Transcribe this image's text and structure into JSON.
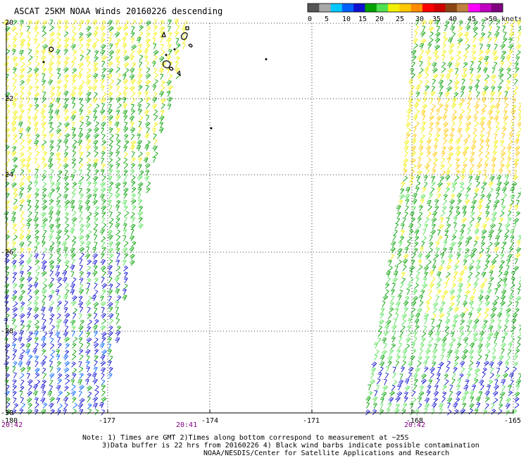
{
  "title": "ASCAT 25KM NOAA Winds 20160226 descending",
  "legend": {
    "labels": [
      "0",
      "5",
      "10",
      "15",
      "20",
      "25",
      "30",
      "35",
      "40",
      "45",
      ">50 knots"
    ],
    "colors": [
      "#555555",
      "#a8a8a8",
      "#00c8ff",
      "#0060ff",
      "#1010d0",
      "#00a000",
      "#50e050",
      "#f0f000",
      "#ffc800",
      "#ff8c00",
      "#ff0000",
      "#d00000",
      "#8b4513",
      "#c08040",
      "#ff00ff",
      "#c000c0",
      "#800080"
    ]
  },
  "map": {
    "lat_labels": [
      "-20",
      "-22",
      "-24",
      "-26",
      "-28",
      "-30"
    ],
    "lon_labels": [
      "-180",
      "-177",
      "-174",
      "-171",
      "-168",
      "-165"
    ],
    "times": [
      "20:42",
      "20:41",
      "20:42"
    ],
    "features": [
      "wind-barbs-west-swath",
      "wind-barbs-east-swath",
      "island-outlines"
    ]
  },
  "notes": [
    "Note: 1) Times are GMT 2)Times along bottom correspond to measurement at ~25S",
    "3)Data buffer is 22 hrs from 20160226 4) Black wind barbs indicate possible contamination",
    "NOAA/NESDIS/Center for Satellite Applications and Research"
  ]
}
